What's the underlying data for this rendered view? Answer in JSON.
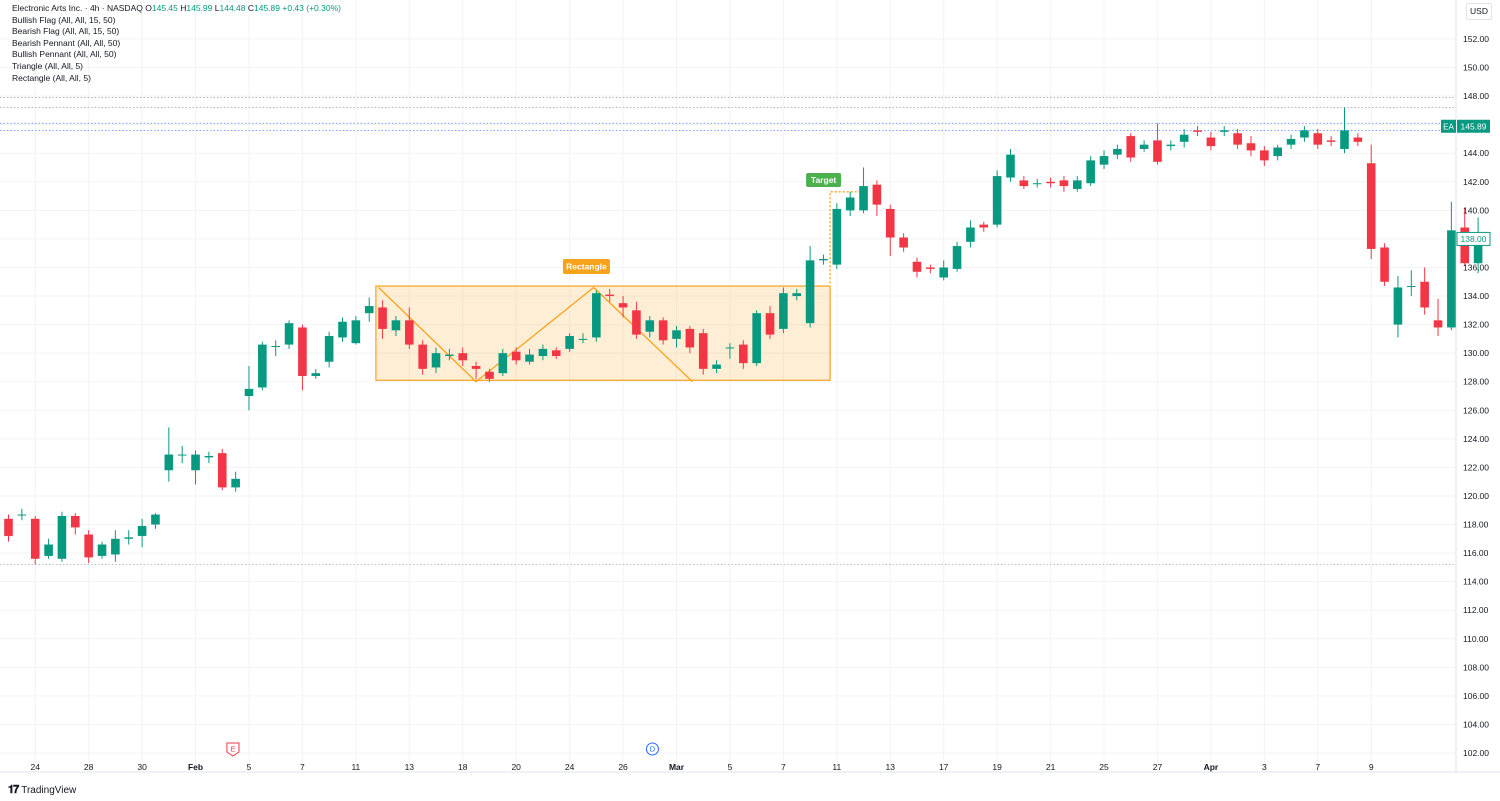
{
  "header": {
    "symbol": "Electronic Arts Inc. · 4h · NASDAQ",
    "o_label": "O",
    "o_value": "145.45",
    "h_label": "H",
    "h_value": "145.99",
    "l_label": "L",
    "l_value": "144.48",
    "c_label": "C",
    "c_value": "145.89",
    "change": "+0.43 (+0.30%)"
  },
  "indicators": [
    "Bullish Flag (All, All, 15, 50)",
    "Bearish Flag (All, All, 15, 50)",
    "Bearish Pennant (All, All, 50)",
    "Bullish Pennant (All, All, 50)",
    "Triangle (All, All, 5)",
    "Rectangle (All, All, 5)"
  ],
  "currency": "USD",
  "branding": "TradingView",
  "colors": {
    "up": "#089981",
    "down": "#f23645",
    "pattern": "#f7a21b",
    "target": "#4caf50",
    "grid": "#f2f3f5"
  },
  "chart_data": {
    "type": "candlestick",
    "title": "Electronic Arts Inc. · 4h · NASDAQ",
    "y_ticks": [
      "102.00",
      "104.00",
      "106.00",
      "108.00",
      "110.00",
      "112.00",
      "114.00",
      "116.00",
      "118.00",
      "120.00",
      "122.00",
      "124.00",
      "126.00",
      "128.00",
      "130.00",
      "132.00",
      "134.00",
      "136.00",
      "138.00",
      "140.00",
      "142.00",
      "144.00",
      "146.00",
      "148.00",
      "150.00",
      "152.00"
    ],
    "y_tick_values": [
      102,
      104,
      106,
      108,
      110,
      112,
      114,
      116,
      118,
      120,
      122,
      124,
      126,
      128,
      130,
      132,
      134,
      136,
      138,
      140,
      142,
      144,
      146,
      148,
      150,
      152
    ],
    "x_ticks": [
      "24",
      "28",
      "30",
      "Feb",
      "5",
      "7",
      "11",
      "13",
      "18",
      "20",
      "24",
      "26",
      "Mar",
      "5",
      "7",
      "11",
      "13",
      "17",
      "19",
      "21",
      "25",
      "27",
      "Apr",
      "3",
      "7",
      "9"
    ],
    "x_tick_index": [
      2,
      6,
      10,
      14,
      18,
      22,
      26,
      30,
      34,
      38,
      42,
      46,
      50,
      54,
      58,
      62,
      66,
      70,
      74,
      78,
      82,
      86,
      90,
      94,
      98,
      102
    ],
    "ylim": [
      101.5,
      153.5
    ],
    "last_price_label": "145.89",
    "last_price": 145.89,
    "symbol_tag": "EA",
    "secondary_price_label": "138.00",
    "secondary_price": 138.0,
    "horizontal_levels": [
      147.9,
      147.2,
      146.1,
      145.6,
      115.2
    ],
    "candles": [
      [
        118.4,
        117.2,
        118.7,
        116.8
      ],
      [
        118.7,
        118.7,
        119.1,
        118.3
      ],
      [
        118.4,
        115.6,
        118.6,
        115.2
      ],
      [
        115.8,
        116.6,
        117.0,
        115.6
      ],
      [
        115.6,
        118.6,
        118.9,
        115.4
      ],
      [
        118.6,
        117.8,
        118.8,
        117.3
      ],
      [
        117.3,
        115.7,
        117.6,
        115.3
      ],
      [
        115.8,
        116.6,
        116.8,
        115.6
      ],
      [
        115.9,
        117.0,
        117.6,
        115.4
      ],
      [
        117.0,
        117.1,
        117.6,
        116.6
      ],
      [
        117.2,
        117.9,
        118.4,
        116.4
      ],
      [
        118.0,
        118.7,
        118.8,
        117.7
      ],
      [
        121.8,
        122.9,
        124.8,
        121.0
      ],
      [
        122.9,
        122.9,
        123.5,
        122.3
      ],
      [
        121.8,
        122.9,
        123.2,
        120.8
      ],
      [
        122.7,
        122.8,
        123.1,
        122.3
      ],
      [
        123.0,
        120.6,
        123.3,
        120.4
      ],
      [
        120.6,
        121.2,
        121.7,
        120.3
      ],
      [
        127.0,
        127.5,
        129.1,
        126.0
      ],
      [
        127.6,
        130.6,
        130.8,
        127.4
      ],
      [
        130.5,
        130.5,
        130.9,
        129.8
      ],
      [
        130.6,
        132.1,
        132.3,
        130.3
      ],
      [
        131.8,
        128.4,
        132.0,
        127.4
      ],
      [
        128.4,
        128.6,
        128.9,
        128.2
      ],
      [
        129.4,
        131.2,
        131.5,
        129.0
      ],
      [
        131.1,
        132.2,
        132.5,
        130.8
      ],
      [
        130.7,
        132.3,
        132.6,
        130.6
      ],
      [
        132.8,
        133.3,
        133.9,
        132.2
      ],
      [
        133.2,
        131.7,
        133.7,
        131.0
      ],
      [
        131.6,
        132.3,
        132.6,
        131.2
      ],
      [
        132.3,
        130.6,
        133.2,
        130.3
      ],
      [
        130.6,
        128.9,
        130.9,
        128.5
      ],
      [
        129.0,
        130.0,
        130.4,
        128.6
      ],
      [
        129.8,
        129.9,
        130.3,
        129.5
      ],
      [
        130.0,
        129.5,
        130.4,
        129.1
      ],
      [
        129.1,
        128.9,
        129.4,
        128.2
      ],
      [
        128.7,
        128.2,
        128.9,
        128.0
      ],
      [
        128.6,
        130.0,
        130.3,
        128.4
      ],
      [
        130.1,
        129.5,
        130.4,
        129.2
      ],
      [
        129.4,
        129.9,
        130.3,
        129.2
      ],
      [
        129.8,
        130.3,
        130.6,
        129.5
      ],
      [
        130.2,
        129.8,
        130.4,
        129.6
      ],
      [
        130.3,
        131.2,
        131.4,
        130.1
      ],
      [
        131.0,
        131.0,
        131.4,
        130.7
      ],
      [
        131.1,
        134.2,
        134.4,
        130.8
      ],
      [
        134.1,
        134.0,
        134.5,
        133.6
      ],
      [
        133.5,
        133.2,
        134.0,
        132.5
      ],
      [
        133.0,
        131.3,
        133.6,
        131.0
      ],
      [
        131.5,
        132.3,
        132.6,
        131.1
      ],
      [
        132.3,
        130.9,
        132.5,
        130.6
      ],
      [
        131.0,
        131.6,
        131.9,
        130.4
      ],
      [
        131.7,
        130.4,
        131.9,
        130.0
      ],
      [
        131.4,
        128.9,
        131.7,
        128.5
      ],
      [
        128.9,
        129.2,
        129.5,
        128.6
      ],
      [
        130.4,
        130.4,
        130.7,
        129.6
      ],
      [
        130.6,
        129.3,
        130.9,
        128.9
      ],
      [
        129.3,
        132.8,
        133.0,
        129.1
      ],
      [
        132.8,
        131.3,
        133.3,
        131.0
      ],
      [
        131.7,
        134.2,
        134.6,
        131.4
      ],
      [
        134.0,
        134.2,
        134.5,
        133.7
      ],
      [
        132.1,
        136.5,
        137.5,
        131.8
      ],
      [
        136.5,
        136.6,
        136.9,
        136.2
      ],
      [
        136.2,
        140.1,
        140.5,
        135.9
      ],
      [
        140.0,
        140.9,
        141.3,
        139.6
      ],
      [
        140.0,
        141.7,
        143.0,
        139.8
      ],
      [
        141.8,
        140.4,
        142.1,
        139.6
      ],
      [
        140.1,
        138.1,
        140.4,
        136.8
      ],
      [
        138.1,
        137.4,
        138.4,
        137.1
      ],
      [
        136.4,
        135.7,
        136.7,
        135.3
      ],
      [
        136.0,
        135.9,
        136.2,
        135.6
      ],
      [
        135.3,
        136.0,
        136.5,
        135.1
      ],
      [
        135.9,
        137.5,
        137.8,
        135.7
      ],
      [
        137.8,
        138.8,
        139.3,
        137.4
      ],
      [
        139.0,
        138.8,
        139.2,
        138.5
      ],
      [
        139.0,
        142.4,
        142.8,
        138.8
      ],
      [
        142.3,
        143.9,
        144.3,
        142.0
      ],
      [
        142.1,
        141.7,
        142.4,
        141.5
      ],
      [
        141.9,
        141.9,
        142.2,
        141.6
      ],
      [
        142.0,
        141.9,
        142.3,
        141.6
      ],
      [
        142.1,
        141.7,
        142.4,
        141.3
      ],
      [
        141.5,
        142.1,
        142.4,
        141.3
      ],
      [
        141.9,
        143.5,
        143.8,
        141.7
      ],
      [
        143.2,
        143.8,
        144.2,
        142.9
      ],
      [
        143.9,
        144.3,
        144.6,
        143.6
      ],
      [
        145.2,
        143.7,
        145.4,
        143.4
      ],
      [
        144.3,
        144.6,
        144.9,
        144.1
      ],
      [
        144.9,
        143.4,
        146.1,
        143.2
      ],
      [
        144.5,
        144.6,
        144.9,
        144.2
      ],
      [
        144.8,
        145.3,
        145.7,
        144.4
      ],
      [
        145.6,
        145.5,
        145.9,
        145.2
      ],
      [
        145.1,
        144.5,
        145.5,
        144.2
      ],
      [
        145.5,
        145.6,
        145.9,
        145.2
      ],
      [
        145.4,
        144.6,
        145.7,
        144.3
      ],
      [
        144.7,
        144.2,
        145.2,
        143.8
      ],
      [
        144.2,
        143.5,
        144.5,
        143.1
      ],
      [
        143.8,
        144.4,
        144.6,
        143.5
      ],
      [
        144.6,
        145.0,
        145.3,
        144.3
      ],
      [
        145.1,
        145.6,
        145.9,
        144.8
      ],
      [
        145.4,
        144.6,
        145.7,
        144.3
      ],
      [
        144.9,
        144.8,
        145.2,
        144.5
      ],
      [
        144.3,
        145.6,
        147.2,
        144.0
      ],
      [
        145.1,
        144.8,
        145.4,
        144.5
      ],
      [
        143.3,
        137.3,
        144.6,
        136.6
      ],
      [
        137.4,
        135.0,
        137.7,
        134.7
      ],
      [
        132.0,
        134.6,
        135.4,
        131.1
      ],
      [
        134.7,
        134.7,
        135.8,
        134.0
      ],
      [
        135.0,
        133.2,
        136.0,
        132.7
      ],
      [
        132.3,
        131.8,
        133.8,
        131.2
      ],
      [
        131.8,
        138.6,
        140.6,
        131.6
      ],
      [
        138.8,
        136.3,
        140.2,
        136.1
      ],
      [
        136.3,
        138.0,
        139.5,
        135.6
      ]
    ],
    "pattern": {
      "label": "Rectangle",
      "target_label": "Target",
      "top": 134.7,
      "bottom": 128.1,
      "start_index": 27.5,
      "end_index": 61.5,
      "zigzag": [
        [
          27.7,
          134.6
        ],
        [
          35.0,
          128.0
        ],
        [
          43.8,
          134.6
        ],
        [
          51.2,
          128.0
        ]
      ],
      "target_value": 141.3,
      "target_start_index": 61.5,
      "target_end_index": 64.0
    },
    "events": [
      {
        "label": "E",
        "index": 16.8
      },
      {
        "label": "D",
        "index": 48.2
      }
    ]
  }
}
